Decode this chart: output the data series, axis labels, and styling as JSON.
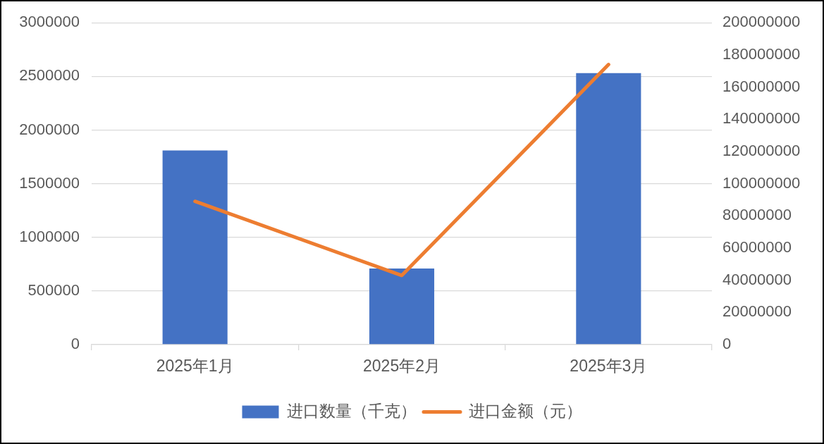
{
  "chart_data": {
    "type": "bar",
    "categories": [
      "2025年1月",
      "2025年2月",
      "2025年3月"
    ],
    "series": [
      {
        "name": "进口数量（千克）",
        "color": "#4472c4",
        "values": [
          1810000,
          710000,
          2530000
        ]
      },
      {
        "name": "进口金额（元）",
        "type": "line",
        "axis": "y2",
        "color": "#ed7d31",
        "values": [
          89000000,
          43000000,
          174000000
        ]
      }
    ],
    "ylim": [
      0,
      3000000
    ],
    "yticks": [
      0,
      500000,
      1000000,
      1500000,
      2000000,
      2500000,
      3000000
    ],
    "y2lim": [
      0,
      200000000
    ],
    "y2ticks": [
      0,
      20000000,
      40000000,
      60000000,
      80000000,
      100000000,
      120000000,
      140000000,
      160000000,
      180000000,
      200000000
    ],
    "grid": "y",
    "legend": "bottom",
    "marker": "none",
    "line_style": "solid"
  }
}
